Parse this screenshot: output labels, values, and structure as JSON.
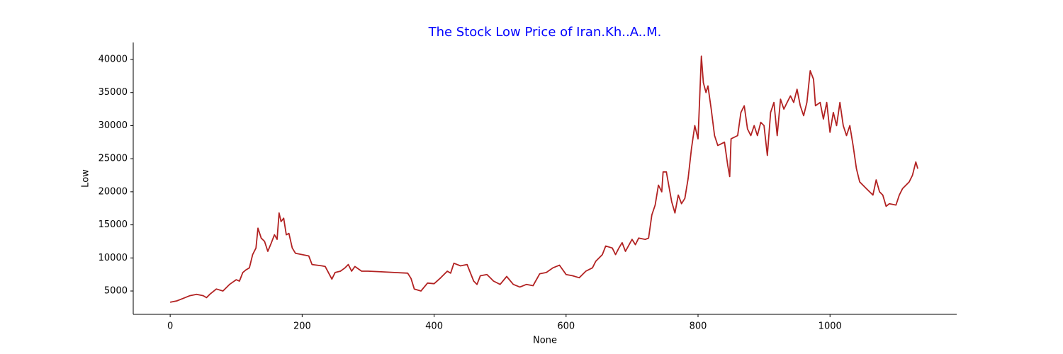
{
  "chart_data": {
    "type": "line",
    "title": "The Stock Low Price of Iran.Kh..A..M.",
    "x_label": "None",
    "y_label": "Low",
    "color": "#b22222",
    "title_color": "#0000ff",
    "xlim": [
      -56,
      1192
    ],
    "ylim": [
      1470,
      42570
    ],
    "xticks": [
      0,
      200,
      400,
      600,
      800,
      1000
    ],
    "yticks": [
      5000,
      10000,
      15000,
      20000,
      25000,
      30000,
      35000,
      40000
    ],
    "x": [
      0,
      10,
      20,
      30,
      40,
      50,
      55,
      60,
      70,
      80,
      90,
      100,
      105,
      110,
      115,
      120,
      125,
      130,
      133,
      138,
      143,
      148,
      153,
      158,
      162,
      165,
      168,
      172,
      176,
      180,
      185,
      190,
      200,
      210,
      215,
      230,
      235,
      245,
      250,
      258,
      265,
      270,
      275,
      280,
      290,
      300,
      320,
      340,
      360,
      365,
      370,
      380,
      390,
      400,
      410,
      420,
      425,
      430,
      440,
      450,
      460,
      465,
      470,
      480,
      485,
      490,
      500,
      510,
      520,
      530,
      540,
      550,
      560,
      570,
      580,
      590,
      600,
      610,
      620,
      630,
      640,
      645,
      655,
      660,
      670,
      675,
      680,
      685,
      690,
      700,
      705,
      710,
      720,
      725,
      730,
      735,
      740,
      745,
      747,
      752,
      760,
      765,
      770,
      775,
      780,
      785,
      790,
      795,
      800,
      805,
      808,
      812,
      815,
      820,
      825,
      830,
      840,
      845,
      848,
      850,
      860,
      865,
      870,
      875,
      880,
      885,
      890,
      895,
      900,
      905,
      910,
      915,
      920,
      925,
      930,
      935,
      940,
      945,
      950,
      955,
      960,
      965,
      970,
      975,
      978,
      985,
      990,
      995,
      1000,
      1005,
      1010,
      1015,
      1020,
      1025,
      1030,
      1035,
      1040,
      1045,
      1055,
      1065,
      1070,
      1075,
      1080,
      1085,
      1090,
      1100,
      1105,
      1110,
      1120,
      1125,
      1130,
      1133
    ],
    "values": [
      3300,
      3500,
      3900,
      4300,
      4500,
      4300,
      4000,
      4500,
      5300,
      5000,
      6000,
      6700,
      6500,
      7800,
      8200,
      8500,
      10500,
      11500,
      14500,
      13000,
      12500,
      11000,
      12200,
      13500,
      12800,
      16800,
      15500,
      16000,
      13500,
      13700,
      11500,
      10700,
      10500,
      10300,
      9000,
      8800,
      8700,
      6800,
      7800,
      8000,
      8500,
      9000,
      8000,
      8700,
      8000,
      8000,
      7900,
      7800,
      7700,
      6900,
      5300,
      5000,
      6200,
      6100,
      7000,
      8000,
      7700,
      9200,
      8800,
      9000,
      6500,
      6000,
      7300,
      7500,
      7000,
      6500,
      6000,
      7200,
      6000,
      5600,
      6000,
      5800,
      7600,
      7800,
      8500,
      8900,
      7500,
      7300,
      7000,
      8000,
      8500,
      9500,
      10500,
      11800,
      11500,
      10500,
      11500,
      12300,
      11000,
      12800,
      12000,
      13000,
      12800,
      13000,
      16500,
      18000,
      21000,
      20000,
      23000,
      23000,
      18500,
      16800,
      19500,
      18200,
      19000,
      22000,
      26500,
      30000,
      28000,
      40500,
      36500,
      35000,
      36000,
      32500,
      28500,
      27000,
      27500,
      24000,
      22300,
      28000,
      28500,
      32000,
      33000,
      29500,
      28500,
      30000,
      28500,
      30500,
      30000,
      25500,
      32000,
      33500,
      28500,
      34000,
      32500,
      33500,
      34500,
      33500,
      35500,
      33000,
      31500,
      33500,
      38300,
      37000,
      33000,
      33500,
      31000,
      33500,
      29000,
      32000,
      30000,
      33500,
      30000,
      28500,
      30000,
      27000,
      23500,
      21500,
      20500,
      19500,
      21800,
      20000,
      19500,
      17800,
      18200,
      18000,
      19500,
      20500,
      21500,
      22500,
      24500,
      23500
    ]
  }
}
